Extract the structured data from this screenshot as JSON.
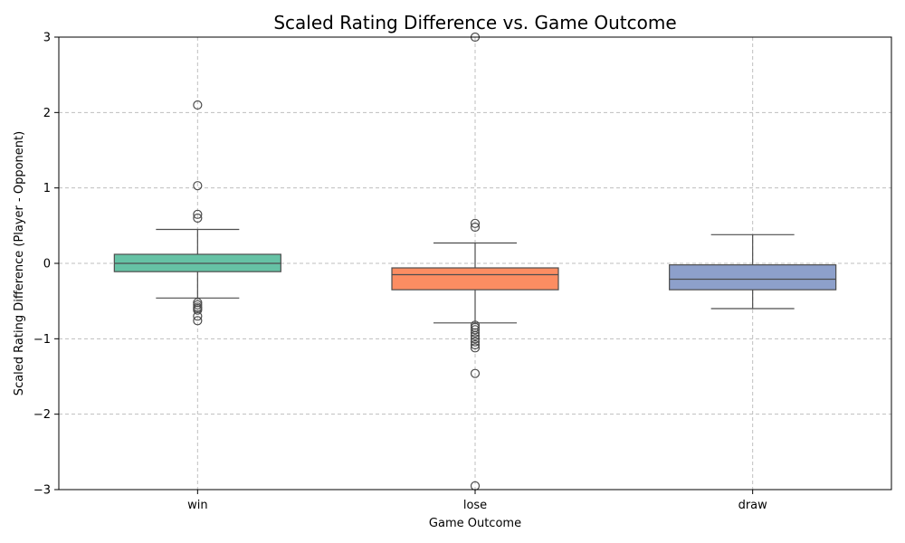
{
  "chart_data": {
    "type": "box",
    "title": "Scaled Rating Difference vs. Game Outcome",
    "xlabel": "Game Outcome",
    "ylabel": "Scaled Rating Difference (Player - Opponent)",
    "ylim": [
      -3,
      3
    ],
    "yticks": [
      -3,
      -2,
      -1,
      0,
      1,
      2,
      3
    ],
    "ytick_labels": [
      "−3",
      "−2",
      "−1",
      "0",
      "1",
      "2",
      "3"
    ],
    "grid": true,
    "categories": [
      "win",
      "lose",
      "draw"
    ],
    "series": [
      {
        "category": "win",
        "color": "#66c2a5",
        "whisker_low": -0.46,
        "q1": -0.11,
        "median": 0.0,
        "q3": 0.12,
        "whisker_high": 0.45,
        "outliers": [
          2.1,
          1.03,
          0.65,
          0.6,
          -0.52,
          -0.55,
          -0.58,
          -0.6,
          -0.62,
          -0.7,
          -0.76
        ]
      },
      {
        "category": "lose",
        "color": "#fc8d62",
        "whisker_low": -0.79,
        "q1": -0.35,
        "median": -0.15,
        "q3": -0.06,
        "whisker_high": 0.27,
        "outliers": [
          3.0,
          0.53,
          0.48,
          -0.82,
          -0.85,
          -0.88,
          -0.92,
          -0.96,
          -1.0,
          -1.04,
          -1.08,
          -1.12,
          -1.46,
          -2.95
        ]
      },
      {
        "category": "draw",
        "color": "#8da0cb",
        "whisker_low": -0.6,
        "q1": -0.35,
        "median": -0.21,
        "q3": -0.02,
        "whisker_high": 0.38,
        "outliers": []
      }
    ]
  }
}
